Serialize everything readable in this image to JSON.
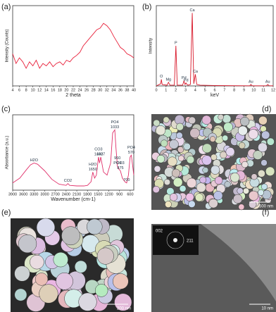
{
  "chart_data": [
    {
      "type": "line",
      "label": "(a)",
      "xlabel": "2 theta",
      "ylabel": "Intensity (Counts)",
      "color": "#e8203a",
      "x": [
        4,
        5,
        6,
        7,
        8,
        9,
        10,
        11,
        12,
        13,
        14,
        15,
        16,
        17,
        18,
        19,
        20,
        21,
        22,
        23,
        24,
        25,
        26,
        27,
        28,
        29,
        30,
        31,
        32,
        33,
        34,
        35,
        36,
        37,
        38,
        39,
        40
      ],
      "values": [
        40,
        28,
        35,
        30,
        22,
        30,
        25,
        32,
        22,
        28,
        25,
        30,
        24,
        28,
        30,
        26,
        32,
        30,
        35,
        38,
        42,
        50,
        55,
        60,
        65,
        70,
        72,
        78,
        75,
        70,
        62,
        55,
        48,
        45,
        40,
        38,
        35
      ],
      "xlim": [
        4,
        40
      ],
      "xticks": [
        4,
        6,
        8,
        10,
        12,
        14,
        16,
        18,
        20,
        22,
        24,
        26,
        28,
        30,
        32,
        34,
        36,
        38,
        40
      ],
      "ylim": [
        0,
        100
      ]
    },
    {
      "type": "line",
      "label": "(b)",
      "xlabel": "keV",
      "ylabel": "Intensity",
      "color": "#d8182a",
      "x": [
        0,
        0.3,
        0.45,
        0.52,
        0.6,
        1.1,
        1.25,
        1.4,
        1.85,
        2.01,
        2.15,
        2.7,
        2.84,
        2.95,
        3.05,
        3.15,
        3.25,
        3.5,
        3.69,
        3.85,
        4.01,
        4.15,
        4.5,
        6,
        8,
        9.6,
        9.71,
        9.85,
        11.3,
        11.44,
        11.6,
        12
      ],
      "values": [
        0,
        2,
        3,
        9,
        2,
        1,
        5,
        1,
        1,
        55,
        1,
        1,
        7,
        2,
        4,
        2,
        1,
        2,
        100,
        3,
        16,
        2,
        1,
        0.5,
        0.3,
        0.2,
        2,
        0.2,
        0.2,
        2,
        0.2,
        0.2
      ],
      "xlim": [
        0,
        12
      ],
      "xticks": [
        0,
        1,
        2,
        3,
        4,
        5,
        6,
        7,
        8,
        9,
        10,
        11,
        12
      ],
      "ylim": [
        0,
        110
      ],
      "annotations": [
        {
          "text": [
            "O"
          ],
          "x": 0.52
        },
        {
          "text": [
            "Mg"
          ],
          "x": 1.25
        },
        {
          "text": [
            "P"
          ],
          "x": 2.01
        },
        {
          "text": [
            "Pd"
          ],
          "x": 2.84
        },
        {
          "text": [
            "Pd"
          ],
          "x": 3.05
        },
        {
          "text": [
            "Ca"
          ],
          "x": 3.69
        },
        {
          "text": [
            "Ca"
          ],
          "x": 4.01
        },
        {
          "text": [
            "Au"
          ],
          "x": 9.71
        },
        {
          "text": [
            "Au"
          ],
          "x": 11.44
        }
      ]
    },
    {
      "type": "line",
      "label": "(c)",
      "xlabel": "Wavenumber (cm-1)",
      "ylabel": "Absorbance (a.u.)",
      "color": "#e0306a",
      "x": [
        3900,
        3700,
        3500,
        3400,
        3300,
        3200,
        3000,
        2800,
        2600,
        2400,
        2350,
        2300,
        2100,
        1900,
        1800,
        1700,
        1650,
        1600,
        1550,
        1490,
        1460,
        1427,
        1350,
        1250,
        1150,
        1093,
        1033,
        1000,
        960,
        920,
        875,
        820,
        750,
        700,
        650,
        603,
        570,
        530,
        500
      ],
      "values": [
        12,
        20,
        35,
        42,
        45,
        43,
        32,
        18,
        10,
        8,
        11,
        8,
        7,
        7,
        8,
        14,
        30,
        20,
        25,
        55,
        45,
        55,
        30,
        25,
        45,
        95,
        100,
        70,
        40,
        35,
        32,
        20,
        14,
        12,
        25,
        55,
        58,
        40,
        25
      ],
      "xlim": [
        3900,
        500
      ],
      "xticks": [
        3900,
        3600,
        3300,
        3000,
        2700,
        2400,
        2100,
        1800,
        1500,
        1200,
        900,
        600
      ],
      "ylim": [
        0,
        125
      ],
      "annotations": [
        {
          "text": [
            "H2O"
          ],
          "x": 3300
        },
        {
          "text": [
            "CO2"
          ],
          "x": 2350
        },
        {
          "text": [
            "H2O",
            "1650"
          ],
          "x": 1650
        },
        {
          "text": [
            "CO3",
            "1490"
          ],
          "x": 1490
        },
        {
          "text": [
            "1427"
          ],
          "x": 1427
        },
        {
          "text": [
            "PO4",
            "1033"
          ],
          "x": 1033
        },
        {
          "text": [
            "960",
            "PO4"
          ],
          "x": 960
        },
        {
          "text": [
            "CO3",
            "875"
          ],
          "x": 875
        },
        {
          "text": [
            "700"
          ],
          "x": 700
        },
        {
          "text": [
            "PO4",
            "570"
          ],
          "x": 570
        }
      ]
    }
  ],
  "images": [
    {
      "label": "(d)",
      "scale_bar": "500 nm"
    },
    {
      "label": "(e)",
      "scale_bar": "200 nm"
    },
    {
      "label": "(f)",
      "scale_bar": "10 nm",
      "inset": [
        "002",
        "211"
      ]
    }
  ]
}
